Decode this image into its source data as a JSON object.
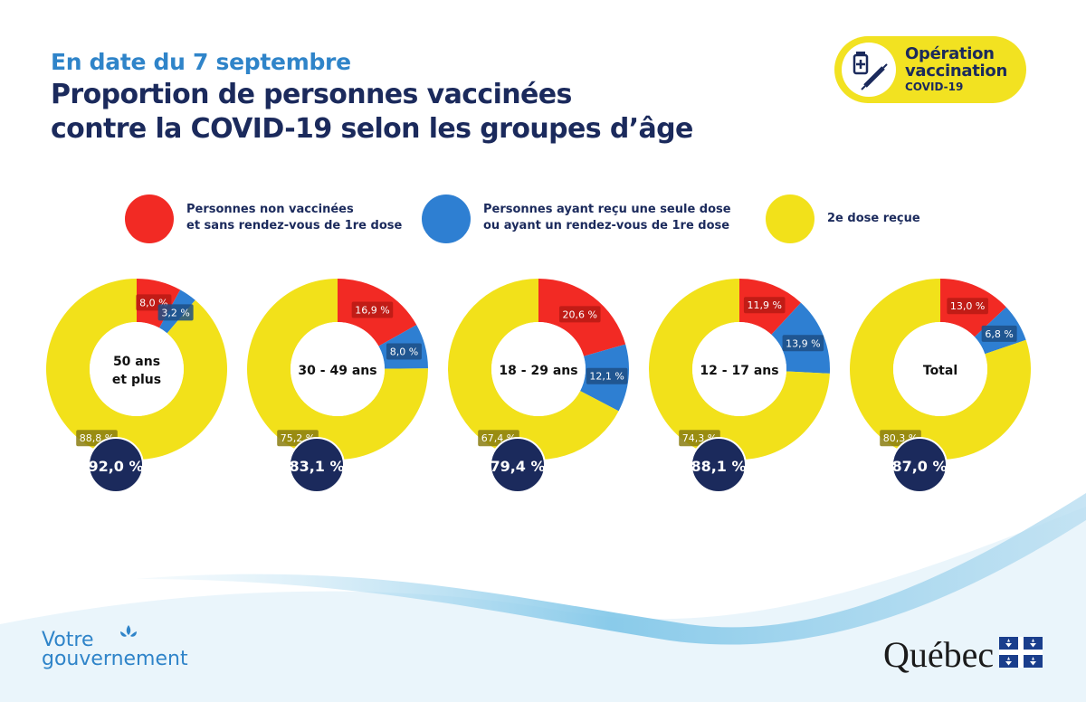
{
  "header": {
    "date_line": "En date du 7 septembre",
    "title_line1": "Proportion de personnes vaccinées",
    "title_line2": "contre la COVID-19 selon les groupes d’âge"
  },
  "badge": {
    "icon": "syringe-vial-icon",
    "line1": "Opération",
    "line2": "vaccination",
    "line3": "COVID-19"
  },
  "legend": [
    {
      "line1": "Personnes non vaccinées",
      "line2": "et sans rendez-vous de 1re dose",
      "color": "#f22a24"
    },
    {
      "line1": "Personnes ayant reçu une seule dose",
      "line2": "ou ayant un rendez-vous de 1re dose",
      "color": "#2e7fd2"
    },
    {
      "line1": "2e dose reçue",
      "line2": "",
      "color": "#f2e11a"
    }
  ],
  "colors": {
    "red": "#f22a24",
    "blue": "#2e7fd2",
    "yellow": "#f2e11a",
    "navy": "#1b2a5c",
    "label_red": "#b81a14",
    "label_blue": "#1d4f86",
    "label_yellow": "#8a7d10"
  },
  "chart_data": {
    "type": "pie",
    "charts": [
      {
        "group_lines": [
          "50 ans",
          "et plus"
        ],
        "values": [
          8.0,
          3.2,
          88.8
        ],
        "labels": [
          "8,0 %",
          "3,2 %",
          "88,8 %"
        ],
        "total_label": "92,0 %"
      },
      {
        "group_lines": [
          "30 - 49 ans"
        ],
        "values": [
          16.9,
          8.0,
          75.2
        ],
        "labels": [
          "16,9 %",
          "8,0 %",
          "75,2 %"
        ],
        "total_label": "83,1 %"
      },
      {
        "group_lines": [
          "18 - 29 ans"
        ],
        "values": [
          20.6,
          12.1,
          67.4
        ],
        "labels": [
          "20,6 %",
          "12,1 %",
          "67,4 %"
        ],
        "total_label": "79,4 %"
      },
      {
        "group_lines": [
          "12 - 17 ans"
        ],
        "values": [
          11.9,
          13.9,
          74.3
        ],
        "labels": [
          "11,9 %",
          "13,9 %",
          "74,3 %"
        ],
        "total_label": "88,1 %"
      },
      {
        "group_lines": [
          "Total"
        ],
        "values": [
          13.0,
          6.8,
          80.3
        ],
        "labels": [
          "13,0 %",
          "6,8 %",
          "80,3 %"
        ],
        "total_label": "87,0 %"
      }
    ]
  },
  "footer": {
    "left_line1": "Votre",
    "left_line2": "gouvernement",
    "left_icon": "fleur-de-lis-icon",
    "right_text": "Québec",
    "right_icon": "quebec-flag-icon"
  }
}
